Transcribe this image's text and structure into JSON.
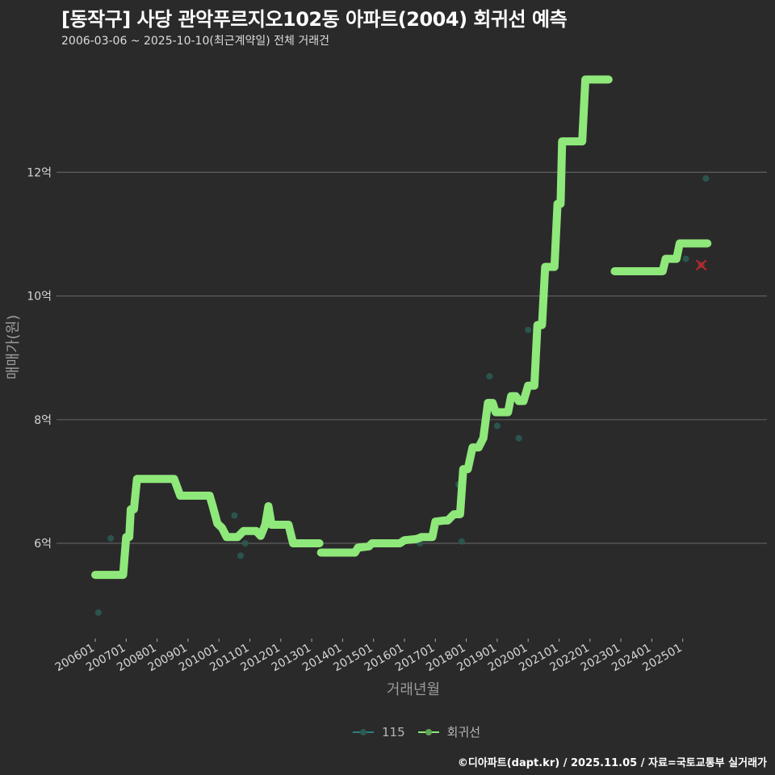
{
  "header": {
    "title": "[동작구] 사당 관악푸르지오102동 아파트(2004) 회귀선 예측",
    "subtitle": "2006-03-06 ~ 2025-10-10(최근계약일) 전체 거래건"
  },
  "colors": {
    "background": "#2b2a2b",
    "gridline": "#5e5e5e",
    "regression": "#8ee87a",
    "points": "#2a5a52",
    "predicted_marker": "#c0282a"
  },
  "legend": {
    "items": [
      {
        "label": "115",
        "color": "#2e7d80"
      },
      {
        "label": "회귀선",
        "color": "#8ee87a"
      }
    ]
  },
  "footer": {
    "credit": "©디아파트(dapt.kr) / 2025.11.05 / 자료=국토교통부 실거래가"
  },
  "chart_data": {
    "type": "line",
    "title": "[동작구] 사당 관악푸르지오102동 아파트(2004) 회귀선 예측",
    "subtitle": "2006-03-06 ~ 2025-10-10(최근계약일) 전체 거래건",
    "xlabel": "거래년월",
    "ylabel": "매매가(원)",
    "x_ticks": [
      "200601",
      "200701",
      "200801",
      "200901",
      "201001",
      "201101",
      "201201",
      "201301",
      "201401",
      "201501",
      "201601",
      "201701",
      "201801",
      "201901",
      "202001",
      "202101",
      "202201",
      "202301",
      "202401",
      "202501"
    ],
    "y_ticks": [
      {
        "label": "6억",
        "value": 6
      },
      {
        "label": "8억",
        "value": 8
      },
      {
        "label": "10억",
        "value": 10
      },
      {
        "label": "12억",
        "value": 12
      }
    ],
    "ylim": [
      4.5,
      14.0
    ],
    "xlim": [
      2005.7,
      2026.3
    ],
    "grid": "horizontal major",
    "legend_position": "bottom",
    "series": [
      {
        "name": "회귀선",
        "unit": "억",
        "segments": [
          [
            [
              2006.0,
              5.49
            ],
            [
              2006.9,
              5.49
            ],
            [
              2007.0,
              6.1
            ],
            [
              2007.1,
              6.1
            ],
            [
              2007.15,
              6.55
            ],
            [
              2007.25,
              6.55
            ],
            [
              2007.35,
              7.04
            ],
            [
              2008.55,
              7.04
            ],
            [
              2008.75,
              6.77
            ],
            [
              2009.7,
              6.77
            ],
            [
              2009.8,
              6.6
            ],
            [
              2009.95,
              6.32
            ],
            [
              2010.1,
              6.25
            ],
            [
              2010.25,
              6.1
            ],
            [
              2010.6,
              6.1
            ],
            [
              2010.8,
              6.2
            ],
            [
              2011.2,
              6.2
            ],
            [
              2011.35,
              6.12
            ],
            [
              2011.5,
              6.3
            ],
            [
              2011.6,
              6.6
            ],
            [
              2011.7,
              6.3
            ],
            [
              2012.25,
              6.3
            ],
            [
              2012.4,
              6.0
            ],
            [
              2013.25,
              6.0
            ]
          ],
          [
            [
              2013.3,
              5.85
            ],
            [
              2014.4,
              5.85
            ],
            [
              2014.5,
              5.93
            ],
            [
              2014.85,
              5.95
            ],
            [
              2014.95,
              6.0
            ],
            [
              2015.85,
              6.0
            ],
            [
              2016.0,
              6.05
            ],
            [
              2016.4,
              6.07
            ],
            [
              2016.55,
              6.1
            ],
            [
              2016.9,
              6.1
            ],
            [
              2017.0,
              6.35
            ],
            [
              2017.3,
              6.37
            ],
            [
              2017.4,
              6.37
            ],
            [
              2017.6,
              6.47
            ],
            [
              2017.8,
              6.47
            ],
            [
              2017.9,
              7.2
            ],
            [
              2018.05,
              7.2
            ],
            [
              2018.2,
              7.55
            ],
            [
              2018.4,
              7.55
            ],
            [
              2018.55,
              7.7
            ],
            [
              2018.7,
              8.27
            ],
            [
              2018.85,
              8.27
            ],
            [
              2018.95,
              8.12
            ],
            [
              2019.35,
              8.12
            ],
            [
              2019.45,
              8.38
            ],
            [
              2019.6,
              8.38
            ],
            [
              2019.7,
              8.3
            ],
            [
              2019.85,
              8.3
            ],
            [
              2020.0,
              8.55
            ],
            [
              2020.2,
              8.55
            ],
            [
              2020.3,
              9.53
            ],
            [
              2020.45,
              9.53
            ],
            [
              2020.55,
              10.47
            ],
            [
              2020.85,
              10.47
            ],
            [
              2020.95,
              11.49
            ],
            [
              2021.05,
              11.49
            ],
            [
              2021.1,
              12.5
            ],
            [
              2021.75,
              12.5
            ],
            [
              2021.85,
              13.5
            ],
            [
              2022.6,
              13.5
            ]
          ],
          [
            [
              2022.8,
              10.4
            ],
            [
              2024.35,
              10.4
            ],
            [
              2024.45,
              10.6
            ],
            [
              2024.8,
              10.6
            ],
            [
              2024.9,
              10.85
            ],
            [
              2025.8,
              10.85
            ]
          ]
        ]
      },
      {
        "name": "115",
        "unit": "억",
        "points": [
          [
            2006.1,
            4.88
          ],
          [
            2006.5,
            6.08
          ],
          [
            2010.5,
            6.45
          ],
          [
            2010.7,
            5.8
          ],
          [
            2010.85,
            6.0
          ],
          [
            2011.5,
            6.4
          ],
          [
            2016.5,
            6.0
          ],
          [
            2017.75,
            6.95
          ],
          [
            2017.85,
            6.03
          ],
          [
            2018.75,
            8.7
          ],
          [
            2019.0,
            7.9
          ],
          [
            2019.7,
            7.7
          ],
          [
            2020.0,
            9.45
          ],
          [
            2025.1,
            10.6
          ],
          [
            2025.75,
            11.9
          ]
        ]
      }
    ],
    "annotations": [
      {
        "type": "predicted_marker",
        "shape": "x",
        "x": 2025.6,
        "y": 10.5,
        "color": "#c0282a"
      }
    ]
  }
}
